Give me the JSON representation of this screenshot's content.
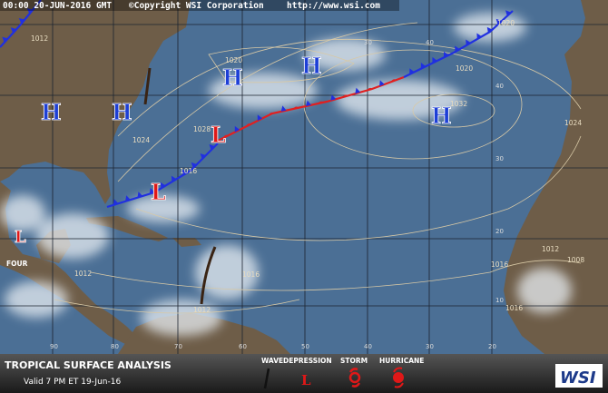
{
  "header": {
    "timestamp": "00:00 20-JUN-2016 GMT",
    "copyright": "©Copyright WSI Corporation",
    "url": "http://www.wsi.com"
  },
  "highs": [
    "H",
    "H",
    "H",
    "H",
    "H"
  ],
  "lows": [
    "L",
    "L",
    "L"
  ],
  "storm_name": "FOUR",
  "isobars": [
    1012,
    1020,
    1020,
    1024,
    1028,
    1032,
    1016,
    1020,
    1024,
    1012,
    1008,
    1016,
    1012,
    1016,
    1012,
    1016
  ],
  "lat_labels": [
    40,
    30,
    20,
    10
  ],
  "lon_labels_bottom": [
    90,
    80,
    70,
    60,
    50,
    40,
    30,
    20
  ],
  "lon_labels_top": [
    30,
    40
  ],
  "footer": {
    "title": "TROPICAL SURFACE ANALYSIS",
    "valid": "Valid 7 PM ET 19-Jun-16",
    "legend": {
      "wave": "WAVE",
      "depression": "DEPRESSION",
      "storm": "STORM",
      "hurricane": "HURRICANE",
      "depression_symbol": "L"
    },
    "logo": "WSI"
  }
}
